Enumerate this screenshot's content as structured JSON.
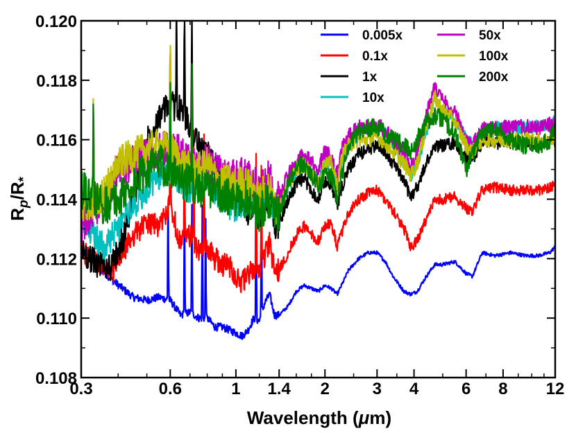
{
  "chart_data": {
    "type": "line",
    "xscale": "log",
    "xlim": [
      0.3,
      12
    ],
    "ylim": [
      0.108,
      0.12
    ],
    "xticks": [
      {
        "value": 0.3,
        "label": "0.3"
      },
      {
        "value": 0.6,
        "label": "0.6"
      },
      {
        "value": 1,
        "label": "1"
      },
      {
        "value": 1.4,
        "label": "1.4"
      },
      {
        "value": 2,
        "label": "2"
      },
      {
        "value": 3,
        "label": "3"
      },
      {
        "value": 4,
        "label": "4"
      },
      {
        "value": 6,
        "label": "6"
      },
      {
        "value": 8,
        "label": "8"
      },
      {
        "value": 12,
        "label": "12"
      }
    ],
    "yticks": [
      {
        "value": 0.108,
        "label": "0.108"
      },
      {
        "value": 0.11,
        "label": "0.110"
      },
      {
        "value": 0.112,
        "label": "0.112"
      },
      {
        "value": 0.114,
        "label": "0.114"
      },
      {
        "value": 0.116,
        "label": "0.116"
      },
      {
        "value": 0.118,
        "label": "0.118"
      },
      {
        "value": 0.12,
        "label": "0.120"
      }
    ],
    "xlabel_pre": "Wavelength (",
    "xlabel_mu": "μ",
    "xlabel_post": "m)",
    "ylabel_R": "R",
    "ylabel_p": "p",
    "ylabel_slash": "/R",
    "ylabel_star": "*",
    "legend_position": "top-right",
    "series": [
      {
        "name": "0.005x",
        "color": "#0000ff",
        "noise": 6e-05,
        "spike_x": [
          0.59,
          0.67,
          0.71,
          0.77,
          0.79,
          1.17,
          1.22
        ],
        "x": [
          0.3,
          0.33,
          0.38,
          0.45,
          0.5,
          0.55,
          0.6,
          0.65,
          0.7,
          0.75,
          0.8,
          0.85,
          0.9,
          0.95,
          1.0,
          1.05,
          1.1,
          1.15,
          1.2,
          1.25,
          1.3,
          1.35,
          1.4,
          1.5,
          1.6,
          1.7,
          1.8,
          1.9,
          2.0,
          2.1,
          2.2,
          2.3,
          2.4,
          2.6,
          2.8,
          3.0,
          3.2,
          3.4,
          3.7,
          3.9,
          4.1,
          4.4,
          4.7,
          5.0,
          5.5,
          6.0,
          6.3,
          6.8,
          7.5,
          8.5,
          9.5,
          10.5,
          11.5,
          12.0
        ],
        "y": [
          0.1123,
          0.1119,
          0.1113,
          0.1107,
          0.1106,
          0.1107,
          0.1106,
          0.1101,
          0.1102,
          0.11,
          0.11,
          0.1097,
          0.1097,
          0.1096,
          0.1095,
          0.1094,
          0.1096,
          0.11,
          0.1099,
          0.1105,
          0.1108,
          0.1101,
          0.1101,
          0.1104,
          0.1109,
          0.1111,
          0.111,
          0.1109,
          0.1111,
          0.111,
          0.1108,
          0.1112,
          0.1116,
          0.112,
          0.1122,
          0.1122,
          0.1119,
          0.1114,
          0.1109,
          0.1108,
          0.1109,
          0.1114,
          0.1118,
          0.1118,
          0.1119,
          0.1115,
          0.1114,
          0.1122,
          0.1121,
          0.1122,
          0.1121,
          0.1121,
          0.1122,
          0.1124
        ]
      },
      {
        "name": "0.1x",
        "color": "#ff0000",
        "noise": 0.00018,
        "spike_x": [
          0.6,
          0.67,
          0.72,
          0.78,
          1.17,
          1.22
        ],
        "x": [
          0.3,
          0.33,
          0.38,
          0.45,
          0.5,
          0.55,
          0.6,
          0.65,
          0.7,
          0.75,
          0.8,
          0.85,
          0.9,
          0.95,
          1.0,
          1.05,
          1.1,
          1.15,
          1.2,
          1.25,
          1.3,
          1.35,
          1.4,
          1.5,
          1.6,
          1.7,
          1.8,
          1.9,
          2.0,
          2.1,
          2.2,
          2.3,
          2.4,
          2.6,
          2.8,
          3.0,
          3.2,
          3.4,
          3.7,
          3.9,
          4.1,
          4.4,
          4.7,
          5.0,
          5.5,
          6.0,
          6.3,
          6.8,
          7.5,
          8.5,
          9.5,
          10.5,
          11.5,
          12.0
        ],
        "y": [
          0.1123,
          0.1119,
          0.1115,
          0.1128,
          0.1132,
          0.1131,
          0.1138,
          0.1125,
          0.1128,
          0.1122,
          0.1124,
          0.112,
          0.1118,
          0.1118,
          0.1114,
          0.1112,
          0.1114,
          0.1117,
          0.1116,
          0.1121,
          0.1125,
          0.1116,
          0.1116,
          0.1122,
          0.1128,
          0.1131,
          0.1128,
          0.1126,
          0.1131,
          0.1132,
          0.1124,
          0.113,
          0.1135,
          0.114,
          0.1142,
          0.1143,
          0.114,
          0.1136,
          0.113,
          0.1124,
          0.1126,
          0.1133,
          0.114,
          0.114,
          0.1141,
          0.1137,
          0.1136,
          0.1143,
          0.1144,
          0.1143,
          0.1143,
          0.1143,
          0.1144,
          0.1145
        ]
      },
      {
        "name": "1x",
        "color": "#000000",
        "noise": 0.00022,
        "spike_x": [
          0.63,
          0.67,
          0.71
        ],
        "x": [
          0.3,
          0.33,
          0.38,
          0.42,
          0.45,
          0.5,
          0.55,
          0.6,
          0.65,
          0.7,
          0.75,
          0.8,
          0.85,
          0.9,
          0.95,
          1.0,
          1.05,
          1.1,
          1.15,
          1.2,
          1.25,
          1.3,
          1.35,
          1.4,
          1.5,
          1.6,
          1.7,
          1.8,
          1.9,
          2.0,
          2.1,
          2.2,
          2.3,
          2.4,
          2.6,
          2.8,
          3.0,
          3.2,
          3.4,
          3.7,
          3.9,
          4.1,
          4.4,
          4.7,
          5.0,
          5.5,
          6.0,
          6.3,
          6.8,
          7.5,
          8.5,
          9.5,
          10.5,
          11.5,
          12.0
        ],
        "y": [
          0.1123,
          0.1119,
          0.1117,
          0.1128,
          0.114,
          0.116,
          0.1168,
          0.1172,
          0.117,
          0.1165,
          0.1158,
          0.1155,
          0.115,
          0.1145,
          0.1143,
          0.1138,
          0.114,
          0.1136,
          0.1138,
          0.1133,
          0.1138,
          0.114,
          0.113,
          0.1132,
          0.114,
          0.1145,
          0.1147,
          0.1143,
          0.114,
          0.1146,
          0.1145,
          0.1138,
          0.1145,
          0.115,
          0.1155,
          0.1157,
          0.1158,
          0.1156,
          0.1152,
          0.1146,
          0.1141,
          0.1144,
          0.1152,
          0.1158,
          0.1158,
          0.1159,
          0.1154,
          0.1153,
          0.1159,
          0.1159,
          0.1159,
          0.1159,
          0.1159,
          0.1159,
          0.116
        ]
      },
      {
        "name": "10x",
        "color": "#00c0c0",
        "noise": 0.00022,
        "spike_x": [],
        "x": [
          0.3,
          0.33,
          0.36,
          0.4,
          0.45,
          0.5,
          0.55,
          0.6,
          0.65,
          0.7,
          0.75,
          0.8,
          0.85,
          0.9,
          0.95,
          1.0,
          1.05,
          1.1,
          1.15,
          1.2,
          1.25,
          1.3,
          1.35,
          1.4,
          1.5,
          1.6,
          1.7,
          1.8,
          1.9,
          2.0,
          2.1,
          2.2,
          2.3,
          2.4,
          2.6,
          2.8,
          3.0,
          3.2,
          3.4,
          3.7,
          3.9,
          4.1,
          4.4,
          4.7,
          5.0,
          5.5,
          6.0,
          6.3,
          6.8,
          7.5,
          8.5,
          9.5,
          10.5,
          11.5,
          12.0
        ],
        "y": [
          0.1131,
          0.1128,
          0.1124,
          0.113,
          0.1138,
          0.1143,
          0.1148,
          0.115,
          0.1146,
          0.1143,
          0.1146,
          0.1148,
          0.1143,
          0.114,
          0.1138,
          0.1136,
          0.1138,
          0.1139,
          0.1137,
          0.1135,
          0.1141,
          0.1143,
          0.1135,
          0.1136,
          0.1144,
          0.1149,
          0.1152,
          0.1148,
          0.1146,
          0.1152,
          0.1152,
          0.1145,
          0.1153,
          0.1158,
          0.1162,
          0.1163,
          0.1164,
          0.1162,
          0.1158,
          0.1152,
          0.1148,
          0.1152,
          0.1162,
          0.1174,
          0.117,
          0.1167,
          0.116,
          0.1158,
          0.1163,
          0.1164,
          0.1164,
          0.1164,
          0.1165,
          0.1165,
          0.1166
        ]
      },
      {
        "name": "50x",
        "color": "#c000c0",
        "noise": 0.00028,
        "spike_x": [
          0.33,
          0.6
        ],
        "x": [
          0.3,
          0.33,
          0.36,
          0.4,
          0.45,
          0.5,
          0.55,
          0.6,
          0.65,
          0.7,
          0.75,
          0.8,
          0.85,
          0.9,
          0.95,
          1.0,
          1.05,
          1.1,
          1.15,
          1.2,
          1.25,
          1.3,
          1.35,
          1.4,
          1.5,
          1.6,
          1.7,
          1.8,
          1.9,
          2.0,
          2.1,
          2.2,
          2.3,
          2.4,
          2.6,
          2.8,
          3.0,
          3.2,
          3.4,
          3.7,
          3.9,
          4.1,
          4.4,
          4.7,
          5.0,
          5.5,
          6.0,
          6.3,
          6.8,
          7.5,
          8.5,
          9.5,
          10.5,
          11.5,
          12.0
        ],
        "y": [
          0.1131,
          0.1136,
          0.114,
          0.115,
          0.1152,
          0.1155,
          0.1157,
          0.1158,
          0.1155,
          0.1152,
          0.115,
          0.1153,
          0.115,
          0.1148,
          0.1148,
          0.1147,
          0.1148,
          0.1148,
          0.1146,
          0.1142,
          0.1145,
          0.1148,
          0.114,
          0.114,
          0.1148,
          0.1152,
          0.1155,
          0.1152,
          0.115,
          0.1156,
          0.1155,
          0.1148,
          0.1158,
          0.1161,
          0.1164,
          0.1164,
          0.1165,
          0.1163,
          0.116,
          0.1155,
          0.1151,
          0.1156,
          0.1168,
          0.1178,
          0.1173,
          0.1169,
          0.116,
          0.1158,
          0.1163,
          0.1164,
          0.1164,
          0.1164,
          0.1164,
          0.1165,
          0.1165
        ]
      },
      {
        "name": "100x",
        "color": "#c0c000",
        "noise": 0.00026,
        "spike_x": [
          0.33,
          0.6
        ],
        "x": [
          0.3,
          0.33,
          0.36,
          0.4,
          0.45,
          0.5,
          0.55,
          0.6,
          0.65,
          0.7,
          0.75,
          0.8,
          0.85,
          0.9,
          0.95,
          1.0,
          1.05,
          1.1,
          1.15,
          1.2,
          1.25,
          1.3,
          1.35,
          1.4,
          1.5,
          1.6,
          1.7,
          1.8,
          1.9,
          2.0,
          2.1,
          2.2,
          2.3,
          2.4,
          2.6,
          2.8,
          3.0,
          3.2,
          3.4,
          3.7,
          3.9,
          4.1,
          4.4,
          4.7,
          5.0,
          5.5,
          6.0,
          6.3,
          6.8,
          7.5,
          8.5,
          9.5,
          10.5,
          11.5,
          12.0
        ],
        "y": [
          0.1136,
          0.1138,
          0.1142,
          0.1152,
          0.1155,
          0.1157,
          0.1158,
          0.1157,
          0.1153,
          0.115,
          0.115,
          0.1152,
          0.1148,
          0.1146,
          0.1146,
          0.1145,
          0.1146,
          0.1145,
          0.1143,
          0.114,
          0.1143,
          0.1145,
          0.1137,
          0.1137,
          0.1145,
          0.115,
          0.1152,
          0.1148,
          0.1146,
          0.1152,
          0.1152,
          0.1145,
          0.1155,
          0.1158,
          0.116,
          0.116,
          0.1161,
          0.1159,
          0.1156,
          0.1152,
          0.1148,
          0.1152,
          0.1164,
          0.1174,
          0.117,
          0.1166,
          0.1158,
          0.1156,
          0.116,
          0.116,
          0.116,
          0.116,
          0.116,
          0.116,
          0.116
        ]
      },
      {
        "name": "200x",
        "color": "#008000",
        "noise": 0.0003,
        "spike_x": [
          0.33,
          0.6,
          0.71
        ],
        "x": [
          0.3,
          0.33,
          0.36,
          0.4,
          0.45,
          0.5,
          0.55,
          0.6,
          0.65,
          0.7,
          0.75,
          0.8,
          0.85,
          0.9,
          0.95,
          1.0,
          1.05,
          1.1,
          1.15,
          1.2,
          1.25,
          1.3,
          1.35,
          1.4,
          1.5,
          1.6,
          1.7,
          1.8,
          1.9,
          2.0,
          2.1,
          2.2,
          2.3,
          2.4,
          2.6,
          2.8,
          3.0,
          3.2,
          3.4,
          3.7,
          3.9,
          4.1,
          4.4,
          4.7,
          5.0,
          5.5,
          6.0,
          6.3,
          6.8,
          7.5,
          8.5,
          9.5,
          10.5,
          11.5,
          12.0
        ],
        "y": [
          0.1143,
          0.114,
          0.1138,
          0.114,
          0.1145,
          0.115,
          0.1152,
          0.115,
          0.1147,
          0.1145,
          0.1144,
          0.1144,
          0.1143,
          0.1142,
          0.114,
          0.1139,
          0.114,
          0.114,
          0.1138,
          0.1135,
          0.1138,
          0.114,
          0.1134,
          0.1135,
          0.1145,
          0.115,
          0.1152,
          0.1148,
          0.1145,
          0.1148,
          0.1148,
          0.114,
          0.115,
          0.1158,
          0.1163,
          0.1164,
          0.1164,
          0.1162,
          0.116,
          0.1158,
          0.1156,
          0.116,
          0.1166,
          0.1168,
          0.1167,
          0.1162,
          0.115,
          0.1155,
          0.1163,
          0.1164,
          0.116,
          0.1158,
          0.1158,
          0.116,
          0.1165
        ]
      }
    ]
  }
}
